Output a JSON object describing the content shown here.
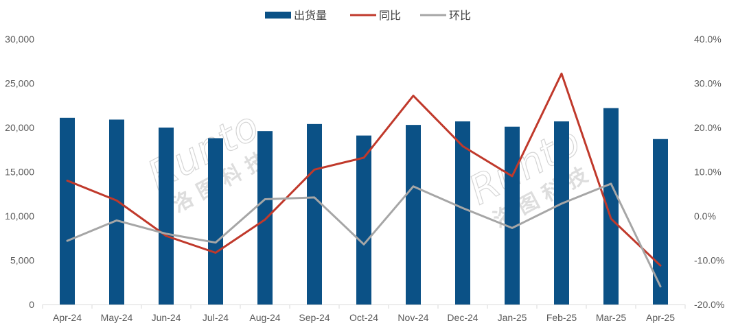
{
  "chart_data": {
    "type": "bar",
    "categories": [
      "Apr-24",
      "May-24",
      "Jun-24",
      "Jul-24",
      "Aug-24",
      "Sep-24",
      "Oct-24",
      "Nov-24",
      "Dec-24",
      "Jan-25",
      "Feb-25",
      "Mar-25",
      "Apr-25"
    ],
    "series": [
      {
        "name": "出货量",
        "type": "bar",
        "axis": "left",
        "color": "#0b5186",
        "values": [
          21100,
          20900,
          20000,
          18800,
          19600,
          20400,
          19100,
          20300,
          20700,
          20100,
          20700,
          22200,
          18700
        ]
      },
      {
        "name": "同比",
        "type": "line",
        "axis": "right",
        "color": "#c0392b",
        "values": [
          8.0,
          3.5,
          -4.5,
          -8.3,
          -0.8,
          10.5,
          13.2,
          27.2,
          15.8,
          9.0,
          32.2,
          -0.6,
          -11.2
        ]
      },
      {
        "name": "环比",
        "type": "line",
        "axis": "right",
        "color": "#a6a6a6",
        "values": [
          -5.6,
          -1.0,
          -4.0,
          -6.0,
          3.8,
          4.2,
          -6.4,
          6.7,
          1.8,
          -2.7,
          2.8,
          7.3,
          -15.9
        ]
      }
    ],
    "y_left": {
      "range": [
        0,
        30000
      ],
      "ticks": [
        "0",
        "5,000",
        "10,000",
        "15,000",
        "20,000",
        "25,000",
        "30,000"
      ]
    },
    "y_right": {
      "range": [
        -20,
        40
      ],
      "ticks": [
        "-20.0%",
        "-10.0%",
        "0.0%",
        "10.0%",
        "20.0%",
        "30.0%",
        "40.0%"
      ]
    },
    "legend_position": "top-center",
    "grid": false
  },
  "watermark": {
    "latin": "Runto",
    "chinese": "洛图科技"
  }
}
